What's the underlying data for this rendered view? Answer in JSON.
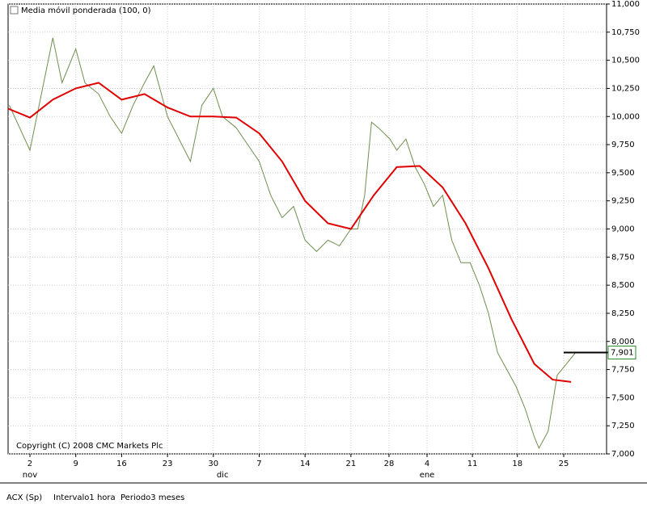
{
  "chart_data": {
    "type": "line",
    "legend_label": "Media móvil ponderada (100, 0)",
    "copyright": "Copyright (C) 2008 CMC Markets Plc",
    "status": [
      "ACX (Sp)",
      "Intervalo1 hora",
      "Periodo3 meses"
    ],
    "ylim": [
      7000,
      11000
    ],
    "yticks": [
      {
        "value": 7000,
        "label": "7,000"
      },
      {
        "value": 7250,
        "label": "7,250"
      },
      {
        "value": 7500,
        "label": "7,500"
      },
      {
        "value": 7750,
        "label": "7,750"
      },
      {
        "value": 8000,
        "label": "8,000"
      },
      {
        "value": 8250,
        "label": "8,250"
      },
      {
        "value": 8500,
        "label": "8,500"
      },
      {
        "value": 8750,
        "label": "8,750"
      },
      {
        "value": 9000,
        "label": "9,000"
      },
      {
        "value": 9250,
        "label": "9,250"
      },
      {
        "value": 9500,
        "label": "9,500"
      },
      {
        "value": 9750,
        "label": "9,750"
      },
      {
        "value": 10000,
        "label": "10,000"
      },
      {
        "value": 10250,
        "label": "10,250"
      },
      {
        "value": 10500,
        "label": "10,500"
      },
      {
        "value": 10750,
        "label": "10,750"
      },
      {
        "value": 11000,
        "label": "11,000"
      }
    ],
    "xlim": [
      -0.476,
      12.575
    ],
    "xticks": [
      {
        "value": 0,
        "label": "2"
      },
      {
        "value": 1,
        "label": "9"
      },
      {
        "value": 2,
        "label": "16"
      },
      {
        "value": 3,
        "label": "23"
      },
      {
        "value": 4,
        "label": "30"
      },
      {
        "value": 5,
        "label": "7"
      },
      {
        "value": 6,
        "label": "14"
      },
      {
        "value": 7,
        "label": "21"
      },
      {
        "value": 7.83,
        "label": "28"
      },
      {
        "value": 8.66,
        "label": "4"
      },
      {
        "value": 9.65,
        "label": "11"
      },
      {
        "value": 10.63,
        "label": "18"
      },
      {
        "value": 11.64,
        "label": "25"
      }
    ],
    "month_labels": [
      {
        "value": 0,
        "label": "nov"
      },
      {
        "value": 4.2,
        "label": "dic"
      },
      {
        "value": 8.66,
        "label": "ene"
      }
    ],
    "grid": true,
    "series": [
      {
        "color": "#6f8f4f",
        "x": [
          -0.45,
          0,
          0.25,
          0.4,
          0.5,
          0.7,
          1.0,
          1.2,
          1.5,
          1.75,
          2.0,
          2.25,
          2.5,
          2.7,
          3.0,
          3.25,
          3.5,
          3.75,
          4.0,
          4.2,
          4.5,
          4.75,
          5.0,
          5.25,
          5.5,
          5.75,
          6.0,
          6.25,
          6.5,
          6.75,
          7.0,
          7.15,
          7.3,
          7.45,
          7.6,
          7.85,
          8.0,
          8.2,
          8.4,
          8.6,
          8.8,
          9.0,
          9.2,
          9.4,
          9.6,
          9.8,
          10.0,
          10.2,
          10.4,
          10.6,
          10.8,
          11.0,
          11.1,
          11.3,
          11.5,
          11.7,
          11.9
        ],
        "values": [
          10100,
          9700,
          10200,
          10500,
          10700,
          10300,
          10600,
          10300,
          10200,
          10000,
          9850,
          10100,
          10300,
          10450,
          10000,
          9800,
          9600,
          10100,
          10250,
          10000,
          9900,
          9750,
          9600,
          9300,
          9100,
          9200,
          8900,
          8800,
          8900,
          8850,
          9000,
          9000,
          9300,
          9950,
          9900,
          9800,
          9700,
          9800,
          9550,
          9400,
          9200,
          9300,
          8900,
          8700,
          8700,
          8500,
          8250,
          7900,
          7750,
          7600,
          7400,
          7150,
          7050,
          7200,
          7700,
          7800,
          7901
        ]
      },
      {
        "name": "Media móvil ponderada (100, 0)",
        "color": "#e00000",
        "x": [
          -0.476,
          0,
          0.5,
          1,
          1.5,
          2,
          2.5,
          3,
          3.5,
          4,
          4.5,
          5,
          5.5,
          6,
          6.5,
          7,
          7.5,
          8,
          8.5,
          9,
          9.5,
          10,
          10.5,
          11,
          11.4,
          11.8
        ],
        "values": [
          10070,
          9990,
          10150,
          10250,
          10300,
          10150,
          10200,
          10080,
          10000,
          10000,
          9990,
          9850,
          9600,
          9250,
          9050,
          9000,
          9300,
          9550,
          9560,
          9370,
          9050,
          8650,
          8200,
          7800,
          7660,
          7640
        ]
      }
    ],
    "last_price": {
      "value": 7901,
      "label": "7,901"
    }
  }
}
